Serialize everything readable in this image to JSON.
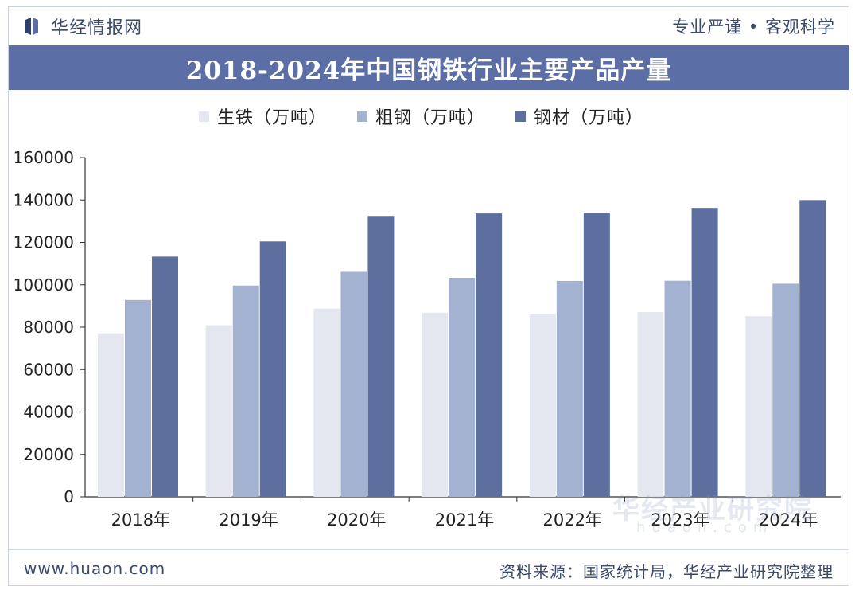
{
  "header": {
    "brand": "华经情报网",
    "slogan": "专业严谨 • 客观科学"
  },
  "colors": {
    "pig_iron": "#e4e7ef",
    "crude_steel": "#a3b2d1",
    "steel_products": "#5d6f9f",
    "title_band": "#5b6fa6"
  },
  "footer": {
    "url": "www.huaon.com",
    "source": "资料来源：国家统计局，华经产业研究院整理"
  },
  "watermark": {
    "text": "华经产业研究院",
    "sub": "huaon.com"
  },
  "chart_data": {
    "type": "bar",
    "title": "2018-2024年中国钢铁行业主要产品产量",
    "xlabel": "",
    "ylabel": "",
    "categories": [
      "2018年",
      "2019年",
      "2020年",
      "2021年",
      "2022年",
      "2023年",
      "2024年"
    ],
    "series": [
      {
        "name": "生铁（万吨）",
        "values": [
          77105,
          80937,
          88752,
          86857,
          86383,
          87101,
          85174
        ]
      },
      {
        "name": "粗钢（万吨）",
        "values": [
          92826,
          99634,
          106477,
          103279,
          101796,
          101908,
          100509
        ]
      },
      {
        "name": "钢材（万吨）",
        "values": [
          113287,
          120457,
          132489,
          133667,
          134034,
          136268,
          139967
        ]
      }
    ],
    "ylim": [
      0,
      160000
    ],
    "yticks": [
      "0",
      "20000",
      "40000",
      "60000",
      "80000",
      "100000",
      "120000",
      "140000",
      "160000"
    ],
    "grid": false,
    "legend": "top"
  }
}
